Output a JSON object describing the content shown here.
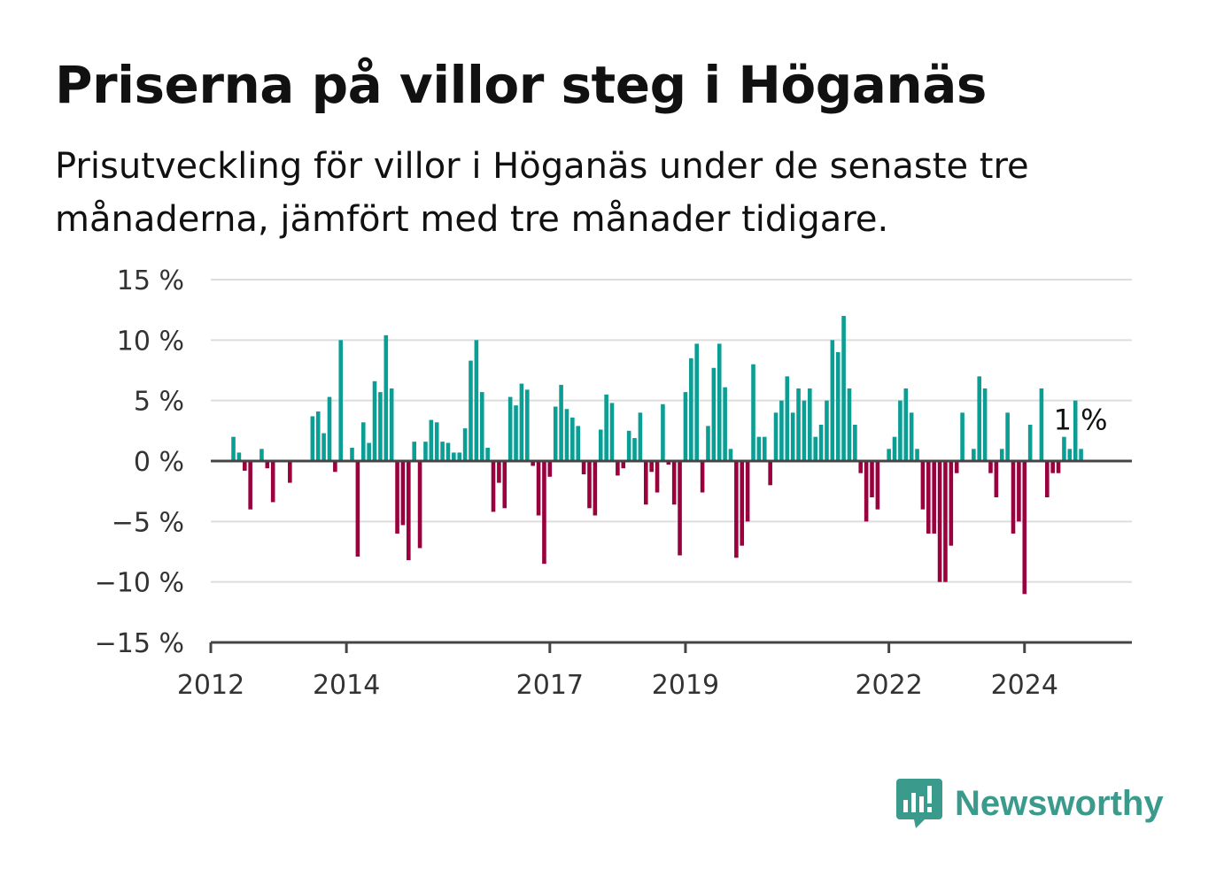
{
  "title": "Priserna på villor steg i Höganäs",
  "subtitle": "Prisutveckling för villor i Höganäs under de senaste tre månaderna, jämfört med tre månader tidigare.",
  "brand": {
    "name": "Newsworthy",
    "icon": "newsworthy-logo-icon",
    "color": "#3a9a8c"
  },
  "colors": {
    "positive": "#0a9e94",
    "negative": "#99003d",
    "grid": "#dddddd",
    "axis": "#444444"
  },
  "chart_data": {
    "type": "bar",
    "xlabel": "",
    "ylabel": "",
    "ylim": [
      -15,
      15
    ],
    "y_ticks": [
      15,
      10,
      5,
      0,
      -5,
      -10,
      -15
    ],
    "y_tick_labels": [
      "15 %",
      "10 %",
      "5 %",
      "0 %",
      "−5 %",
      "−10 %",
      "−15 %"
    ],
    "x_ticks": [
      2012,
      2014,
      2017,
      2019,
      2022,
      2024
    ],
    "x_tick_labels": [
      "2012",
      "2014",
      "2017",
      "2019",
      "2022",
      "2024"
    ],
    "grid": true,
    "annotation": "1 %",
    "x_start": "2012-01",
    "x_end": "2025-08",
    "bars": [
      {
        "x": "2012-01",
        "value": 0
      },
      {
        "x": "2012-02",
        "value": 0
      },
      {
        "x": "2012-03",
        "value": 0
      },
      {
        "x": "2012-04",
        "value": 0
      },
      {
        "x": "2012-05",
        "value": 2.0
      },
      {
        "x": "2012-06",
        "value": 0.7
      },
      {
        "x": "2012-07",
        "value": -0.8
      },
      {
        "x": "2012-08",
        "value": -4.0
      },
      {
        "x": "2012-09",
        "value": 0
      },
      {
        "x": "2012-10",
        "value": 1.0
      },
      {
        "x": "2012-11",
        "value": -0.6
      },
      {
        "x": "2012-12",
        "value": -3.4
      },
      {
        "x": "2013-01",
        "value": 0
      },
      {
        "x": "2013-02",
        "value": 0
      },
      {
        "x": "2013-03",
        "value": -1.8
      },
      {
        "x": "2013-04",
        "value": 0
      },
      {
        "x": "2013-05",
        "value": 0
      },
      {
        "x": "2013-06",
        "value": 0
      },
      {
        "x": "2013-07",
        "value": 3.7
      },
      {
        "x": "2013-08",
        "value": 4.1
      },
      {
        "x": "2013-09",
        "value": 2.3
      },
      {
        "x": "2013-10",
        "value": 5.3
      },
      {
        "x": "2013-11",
        "value": -0.9
      },
      {
        "x": "2013-12",
        "value": 10.0
      },
      {
        "x": "2014-01",
        "value": 0
      },
      {
        "x": "2014-02",
        "value": 1.1
      },
      {
        "x": "2014-03",
        "value": -7.9
      },
      {
        "x": "2014-04",
        "value": 3.2
      },
      {
        "x": "2014-05",
        "value": 1.5
      },
      {
        "x": "2014-06",
        "value": 6.6
      },
      {
        "x": "2014-07",
        "value": 5.7
      },
      {
        "x": "2014-08",
        "value": 10.4
      },
      {
        "x": "2014-09",
        "value": 6.0
      },
      {
        "x": "2014-10",
        "value": -6.0
      },
      {
        "x": "2014-11",
        "value": -5.3
      },
      {
        "x": "2014-12",
        "value": -8.2
      },
      {
        "x": "2015-01",
        "value": 1.6
      },
      {
        "x": "2015-02",
        "value": -7.2
      },
      {
        "x": "2015-03",
        "value": 1.6
      },
      {
        "x": "2015-04",
        "value": 3.4
      },
      {
        "x": "2015-05",
        "value": 3.2
      },
      {
        "x": "2015-06",
        "value": 1.6
      },
      {
        "x": "2015-07",
        "value": 1.5
      },
      {
        "x": "2015-08",
        "value": 0.7
      },
      {
        "x": "2015-09",
        "value": 0.7
      },
      {
        "x": "2015-10",
        "value": 2.7
      },
      {
        "x": "2015-11",
        "value": 8.3
      },
      {
        "x": "2015-12",
        "value": 10.0
      },
      {
        "x": "2016-01",
        "value": 5.7
      },
      {
        "x": "2016-02",
        "value": 1.1
      },
      {
        "x": "2016-03",
        "value": -4.2
      },
      {
        "x": "2016-04",
        "value": -1.8
      },
      {
        "x": "2016-05",
        "value": -3.9
      },
      {
        "x": "2016-06",
        "value": 5.3
      },
      {
        "x": "2016-07",
        "value": 4.6
      },
      {
        "x": "2016-08",
        "value": 6.4
      },
      {
        "x": "2016-09",
        "value": 5.9
      },
      {
        "x": "2016-10",
        "value": -0.4
      },
      {
        "x": "2016-11",
        "value": -4.5
      },
      {
        "x": "2016-12",
        "value": -8.5
      },
      {
        "x": "2017-01",
        "value": -1.3
      },
      {
        "x": "2017-02",
        "value": 4.5
      },
      {
        "x": "2017-03",
        "value": 6.3
      },
      {
        "x": "2017-04",
        "value": 4.3
      },
      {
        "x": "2017-05",
        "value": 3.6
      },
      {
        "x": "2017-06",
        "value": 2.9
      },
      {
        "x": "2017-07",
        "value": -1.1
      },
      {
        "x": "2017-08",
        "value": -3.9
      },
      {
        "x": "2017-09",
        "value": -4.5
      },
      {
        "x": "2017-10",
        "value": 2.6
      },
      {
        "x": "2017-11",
        "value": 5.5
      },
      {
        "x": "2017-12",
        "value": 4.8
      },
      {
        "x": "2018-01",
        "value": -1.2
      },
      {
        "x": "2018-02",
        "value": -0.6
      },
      {
        "x": "2018-03",
        "value": 2.5
      },
      {
        "x": "2018-04",
        "value": 1.9
      },
      {
        "x": "2018-05",
        "value": 4.0
      },
      {
        "x": "2018-06",
        "value": -3.6
      },
      {
        "x": "2018-07",
        "value": -0.9
      },
      {
        "x": "2018-08",
        "value": -2.6
      },
      {
        "x": "2018-09",
        "value": 4.7
      },
      {
        "x": "2018-10",
        "value": -0.3
      },
      {
        "x": "2018-11",
        "value": -3.6
      },
      {
        "x": "2018-12",
        "value": -7.8
      },
      {
        "x": "2019-01",
        "value": 5.7
      },
      {
        "x": "2019-02",
        "value": 8.5
      },
      {
        "x": "2019-03",
        "value": 9.7
      },
      {
        "x": "2019-04",
        "value": -2.6
      },
      {
        "x": "2019-05",
        "value": 2.9
      },
      {
        "x": "2019-06",
        "value": 7.7
      },
      {
        "x": "2019-07",
        "value": 9.7
      },
      {
        "x": "2019-08",
        "value": 6.1
      },
      {
        "x": "2019-09",
        "value": 1.0
      },
      {
        "x": "2019-10",
        "value": -8.0
      },
      {
        "x": "2019-11",
        "value": -7.0
      },
      {
        "x": "2019-12",
        "value": -5.0
      },
      {
        "x": "2020-01",
        "value": 8.0
      },
      {
        "x": "2020-02",
        "value": 2.0
      },
      {
        "x": "2020-03",
        "value": 2.0
      },
      {
        "x": "2020-04",
        "value": -2.0
      },
      {
        "x": "2020-05",
        "value": 4.0
      },
      {
        "x": "2020-06",
        "value": 5.0
      },
      {
        "x": "2020-07",
        "value": 7.0
      },
      {
        "x": "2020-08",
        "value": 4.0
      },
      {
        "x": "2020-09",
        "value": 6.0
      },
      {
        "x": "2020-10",
        "value": 5.0
      },
      {
        "x": "2020-11",
        "value": 6.0
      },
      {
        "x": "2020-12",
        "value": 2.0
      },
      {
        "x": "2021-01",
        "value": 3.0
      },
      {
        "x": "2021-02",
        "value": 5.0
      },
      {
        "x": "2021-03",
        "value": 10.0
      },
      {
        "x": "2021-04",
        "value": 9.0
      },
      {
        "x": "2021-05",
        "value": 12.0
      },
      {
        "x": "2021-06",
        "value": 6.0
      },
      {
        "x": "2021-07",
        "value": 3.0
      },
      {
        "x": "2021-08",
        "value": -1.0
      },
      {
        "x": "2021-09",
        "value": -5.0
      },
      {
        "x": "2021-10",
        "value": -3.0
      },
      {
        "x": "2021-11",
        "value": -4.0
      },
      {
        "x": "2021-12",
        "value": 0
      },
      {
        "x": "2022-01",
        "value": 1.0
      },
      {
        "x": "2022-02",
        "value": 2.0
      },
      {
        "x": "2022-03",
        "value": 5.0
      },
      {
        "x": "2022-04",
        "value": 6.0
      },
      {
        "x": "2022-05",
        "value": 4.0
      },
      {
        "x": "2022-06",
        "value": 1.0
      },
      {
        "x": "2022-07",
        "value": -4.0
      },
      {
        "x": "2022-08",
        "value": -6.0
      },
      {
        "x": "2022-09",
        "value": -6.0
      },
      {
        "x": "2022-10",
        "value": -10.0
      },
      {
        "x": "2022-11",
        "value": -10.0
      },
      {
        "x": "2022-12",
        "value": -7.0
      },
      {
        "x": "2023-01",
        "value": -1.0
      },
      {
        "x": "2023-02",
        "value": 4.0
      },
      {
        "x": "2023-03",
        "value": 0
      },
      {
        "x": "2023-04",
        "value": 1.0
      },
      {
        "x": "2023-05",
        "value": 7.0
      },
      {
        "x": "2023-06",
        "value": 6.0
      },
      {
        "x": "2023-07",
        "value": -1.0
      },
      {
        "x": "2023-08",
        "value": -3.0
      },
      {
        "x": "2023-09",
        "value": 1.0
      },
      {
        "x": "2023-10",
        "value": 4.0
      },
      {
        "x": "2023-11",
        "value": -6.0
      },
      {
        "x": "2023-12",
        "value": -5.0
      },
      {
        "x": "2024-01",
        "value": -11.0
      },
      {
        "x": "2024-02",
        "value": 3.0
      },
      {
        "x": "2024-03",
        "value": 0
      },
      {
        "x": "2024-04",
        "value": 6.0
      },
      {
        "x": "2024-05",
        "value": -3.0
      },
      {
        "x": "2024-06",
        "value": -1.0
      },
      {
        "x": "2024-07",
        "value": -1.0
      },
      {
        "x": "2024-08",
        "value": 2.0
      },
      {
        "x": "2024-09",
        "value": 1.0
      },
      {
        "x": "2024-10",
        "value": 5.0
      },
      {
        "x": "2024-11",
        "value": 1.0
      }
    ]
  }
}
